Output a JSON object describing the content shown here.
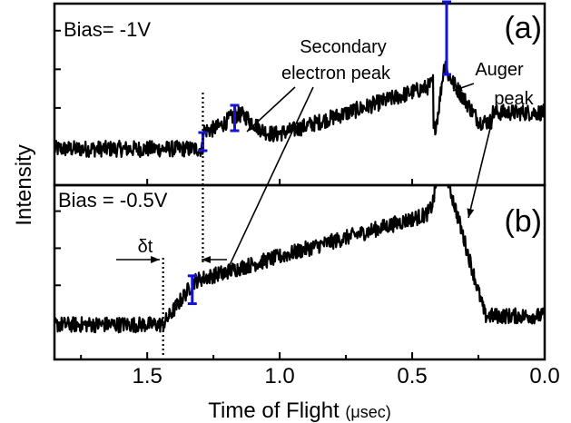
{
  "chart_data": {
    "type": "line",
    "xlabel_main": "Time of Flight",
    "xlabel_unit": "(μsec)",
    "ylabel": "Intensity",
    "xlim": [
      1.85,
      0.0
    ],
    "x_reversed": true,
    "x_ticks": [
      "1.5",
      "1.0",
      "0.5",
      "0.0"
    ],
    "x_tick_values": [
      1.5,
      1.0,
      0.5,
      0.0
    ],
    "y_tick_labels_shown": false,
    "panels": [
      {
        "label": "(a)",
        "bias_text": "Bias= -1V",
        "baseline": 0.2,
        "onset_x": 1.29,
        "peak_x": 0.37,
        "peak_y": 0.86,
        "error_bars": [
          {
            "x": 1.29,
            "y": 0.24,
            "err": 0.05
          },
          {
            "x": 1.17,
            "y": 0.37,
            "err": 0.07
          },
          {
            "x": 0.37,
            "y": 0.81,
            "err": 0.2
          }
        ]
      },
      {
        "label": "(b)",
        "bias_text": "Bias = -0.5V",
        "baseline": 0.2,
        "onset_x": 1.44,
        "peak_x": 0.37,
        "peak_y": 1.05,
        "error_bars": [
          {
            "x": 1.33,
            "y": 0.4,
            "err": 0.08
          }
        ]
      }
    ],
    "annotations": {
      "secondary": "Secondary",
      "secondary2": "electron peak",
      "auger1": "Auger",
      "auger2": "peak",
      "delta_t": "δt"
    }
  }
}
